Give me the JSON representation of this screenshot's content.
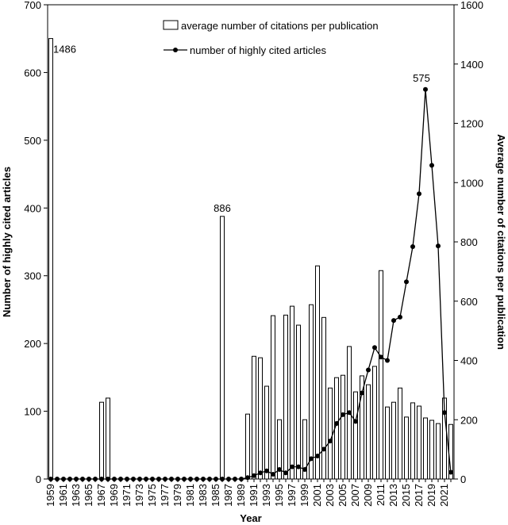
{
  "chart_data": {
    "type": "bar-line",
    "xlabel": "Year",
    "ylabel": "Number of highly cited articles",
    "y2label": "Average number of citations per publication",
    "categories": [
      1959,
      null,
      1961,
      null,
      1963,
      null,
      1965,
      null,
      1967,
      null,
      1969,
      null,
      1971,
      null,
      1973,
      null,
      1975,
      null,
      1977,
      null,
      1979,
      null,
      1981,
      null,
      1983,
      null,
      1985,
      null,
      1987,
      null,
      1989,
      null,
      1991,
      null,
      1993,
      null,
      1995,
      null,
      1997,
      null,
      1999,
      null,
      2001,
      null,
      2003,
      null,
      2005,
      null,
      2007,
      null,
      2009,
      null,
      2011,
      null,
      2013,
      null,
      2015,
      null,
      2017,
      null,
      2019,
      null,
      2021,
      null
    ],
    "series": [
      {
        "name": "average number of citations per publication",
        "kind": "bar",
        "axis": "y2",
        "color": "#ffffff",
        "values": [
          1486,
          0,
          0,
          0,
          0,
          0,
          0,
          0,
          259,
          273,
          0,
          0,
          0,
          0,
          0,
          0,
          0,
          0,
          0,
          0,
          0,
          0,
          0,
          0,
          0,
          0,
          0,
          886,
          0,
          0,
          0,
          219,
          414,
          409,
          313,
          551,
          200,
          553,
          583,
          519,
          200,
          588,
          719,
          545,
          307,
          342,
          350,
          447,
          294,
          348,
          318,
          380,
          703,
          243,
          259,
          307,
          209,
          257,
          246,
          206,
          198,
          187,
          273,
          184
        ],
        "value_labels": [
          "1486",
          null,
          null,
          null,
          null,
          null,
          null,
          null,
          null,
          null,
          null,
          null,
          null,
          null,
          null,
          null,
          null,
          null,
          null,
          null,
          null,
          null,
          null,
          null,
          null,
          null,
          null,
          "886",
          null,
          null,
          null,
          null,
          null,
          null,
          null,
          null,
          null,
          null,
          null,
          null,
          null,
          null,
          null,
          null,
          null,
          null,
          null,
          null,
          null,
          null,
          null,
          null,
          null,
          null,
          null,
          null,
          null,
          null,
          null,
          null,
          null,
          null,
          null,
          null
        ]
      },
      {
        "name": "number of highly cited articles",
        "kind": "line",
        "color": "#000000",
        "values": [
          0,
          0,
          0,
          0,
          0,
          0,
          0,
          0,
          0,
          0,
          0,
          0,
          0,
          0,
          0,
          0,
          0,
          0,
          0,
          0,
          0,
          0,
          0,
          0,
          0,
          0,
          0,
          0,
          0,
          0,
          0,
          2,
          5,
          9,
          12,
          7,
          14,
          9,
          18,
          18,
          14,
          30,
          34,
          44,
          56,
          82,
          95,
          98,
          85,
          127,
          161,
          194,
          180,
          175,
          234,
          239,
          291,
          343,
          421,
          575,
          463,
          344,
          98,
          10
        ],
        "value_labels": [
          null,
          null,
          null,
          null,
          null,
          null,
          null,
          null,
          null,
          null,
          null,
          null,
          null,
          null,
          null,
          null,
          null,
          null,
          null,
          null,
          null,
          null,
          null,
          null,
          null,
          null,
          null,
          null,
          null,
          null,
          null,
          null,
          null,
          null,
          null,
          null,
          null,
          null,
          null,
          null,
          null,
          null,
          null,
          null,
          null,
          null,
          null,
          null,
          null,
          null,
          null,
          null,
          null,
          null,
          null,
          null,
          null,
          null,
          null,
          "575",
          null,
          null,
          null,
          null
        ]
      }
    ],
    "ylim": [
      0,
      700
    ],
    "yticks": [
      0,
      100,
      200,
      300,
      400,
      500,
      600,
      700
    ],
    "y2lim": [
      0,
      1600
    ],
    "y2ticks": [
      0,
      200,
      400,
      600,
      800,
      1000,
      1200,
      1400,
      1600
    ]
  }
}
